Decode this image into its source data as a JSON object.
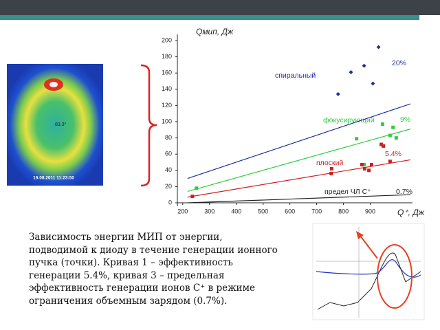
{
  "chart_data": {
    "type": "scatter",
    "ylabel": "Qмип, Дж",
    "xlabel": "Q⁺, Дж",
    "xlim": [
      180,
      1050
    ],
    "ylim": [
      0,
      200
    ],
    "xticks": [
      200,
      300,
      400,
      500,
      600,
      700,
      800,
      900
    ],
    "yticks": [
      0,
      20,
      40,
      60,
      80,
      100,
      120,
      140,
      160,
      180,
      200
    ],
    "series": [
      {
        "name": "спиральный",
        "color": "#1c2f9e",
        "kind": "points",
        "x": [
          780,
          828,
          877,
          910,
          931
        ],
        "values": [
          134,
          161,
          169,
          147,
          192
        ]
      },
      {
        "name": "фокусирующий",
        "color": "#2ecc40",
        "kind": "points",
        "x": [
          251,
          849,
          877,
          946,
          974,
          985,
          997
        ],
        "values": [
          18,
          79,
          47,
          97,
          83,
          93,
          80
        ]
      },
      {
        "name": "плоский",
        "color": "#cc2020",
        "kind": "points",
        "x": [
          236,
          756,
          754,
          869,
          879,
          895,
          905,
          941,
          949,
          974
        ],
        "values": [
          8,
          42,
          36,
          47,
          42,
          40,
          47,
          72,
          70,
          51
        ]
      },
      {
        "name": "20%",
        "color": "#1c2f9e",
        "kind": "line",
        "x": [
          218,
          1050
        ],
        "values": [
          30,
          122
        ]
      },
      {
        "name": "9%",
        "color": "#2ecc40",
        "kind": "line",
        "x": [
          218,
          1050
        ],
        "values": [
          14,
          91
        ]
      },
      {
        "name": "5.4%",
        "color": "#cc2020",
        "kind": "line",
        "x": [
          218,
          1050
        ],
        "values": [
          7,
          53
        ]
      },
      {
        "name": "0.7%",
        "color": "#222222",
        "kind": "line",
        "x": [
          218,
          1050
        ],
        "values": [
          0,
          10
        ]
      }
    ],
    "annotation": "предел ЧЛ С⁺"
  },
  "thermal": {
    "temperature": "83.3°",
    "timestamp": "19.08.2011 11:23:50"
  },
  "caption": [
    "Зависимость энергии МИП от энергии,",
    "подводимой к диоду в течение генерации ионного",
    "пучка (точки). Кривая 1 – эффективность",
    "генерации 5.4%, кривая 3 – предельная",
    "эффективность генерации ионов С⁺ в режиме",
    "ограничения объемным зарядом (0.7%)."
  ]
}
